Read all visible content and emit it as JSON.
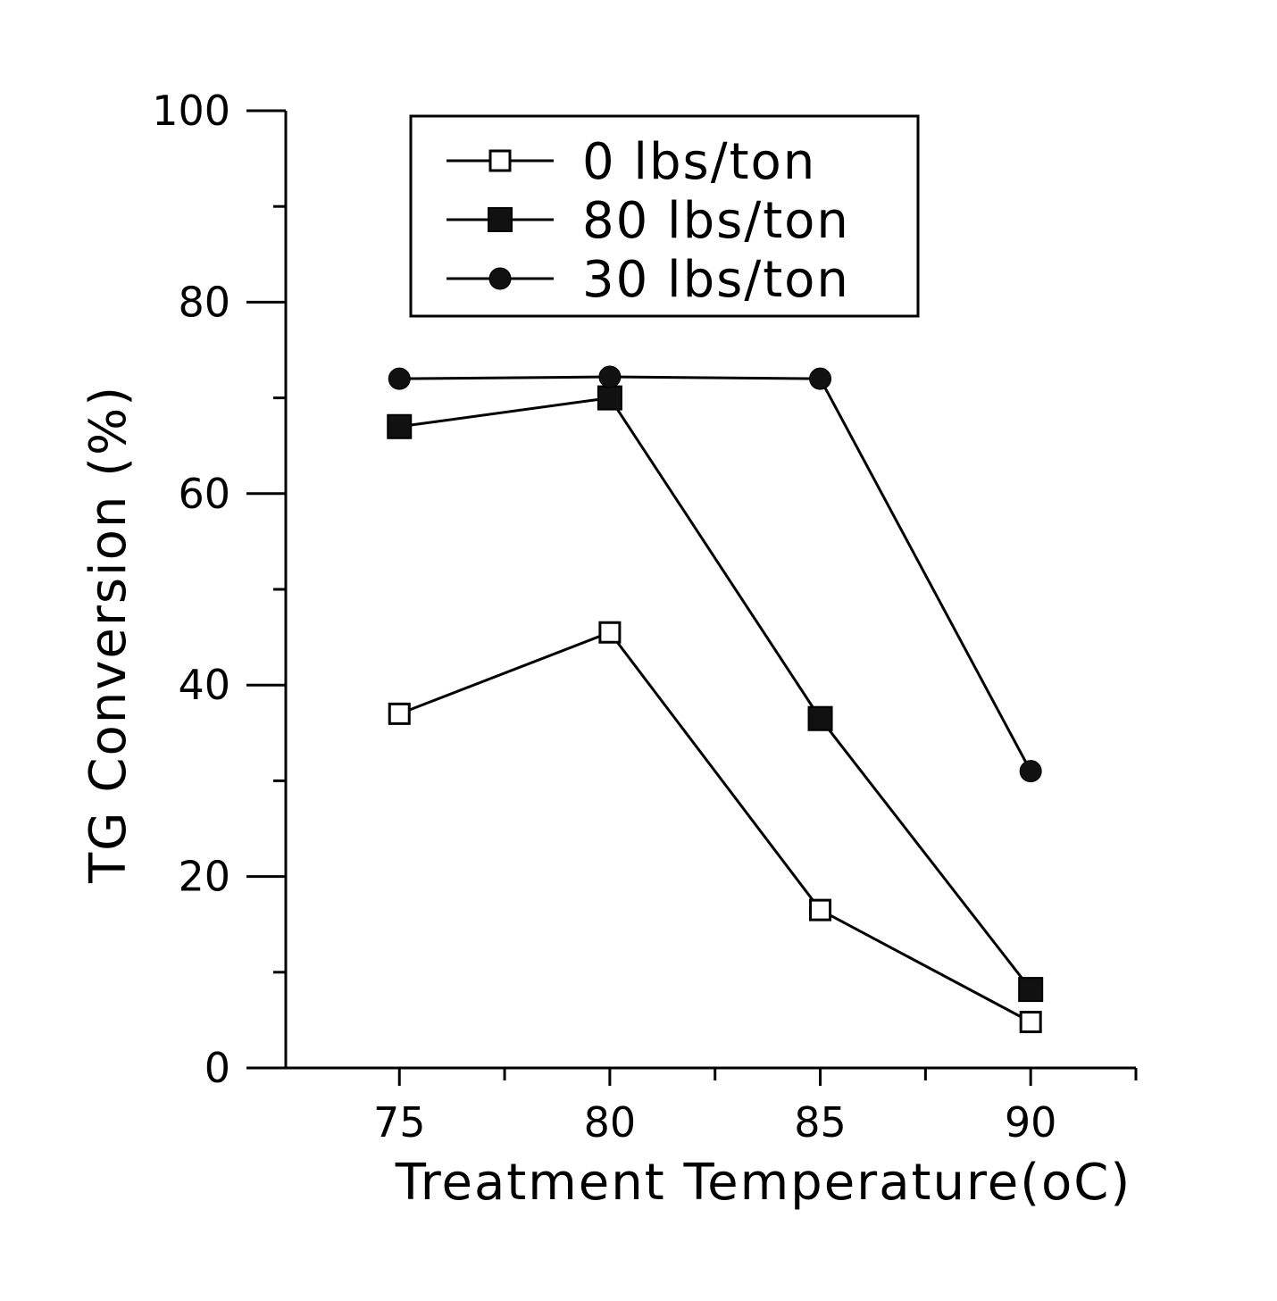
{
  "chart_data": {
    "type": "line",
    "xlabel": "Treatment Temperature(oC)",
    "ylabel": "TG Conversion (%)",
    "xlim": [
      72.3,
      92.5
    ],
    "ylim": [
      0,
      100
    ],
    "x_ticks": [
      75,
      80,
      85,
      90
    ],
    "x_minor_ticks": [
      77.5,
      82.5,
      87.5,
      92.5
    ],
    "y_ticks": [
      0,
      20,
      40,
      60,
      80,
      100
    ],
    "y_minor_ticks": [
      10,
      30,
      50,
      70,
      90
    ],
    "legend_position": "top-center",
    "grid": false,
    "series": [
      {
        "name": "0 lbs/ton",
        "marker": "open-square",
        "x": [
          75,
          80,
          85,
          90
        ],
        "y": [
          37,
          45.5,
          16.5,
          4.8
        ]
      },
      {
        "name": "80 lbs/ton",
        "marker": "filled-square",
        "x": [
          75,
          80,
          85,
          90
        ],
        "y": [
          67,
          70,
          36.5,
          8.2
        ]
      },
      {
        "name": "30 lbs/ton",
        "marker": "filled-circle",
        "x": [
          75,
          80,
          85,
          90
        ],
        "y": [
          72,
          72.2,
          72,
          31
        ]
      }
    ]
  }
}
